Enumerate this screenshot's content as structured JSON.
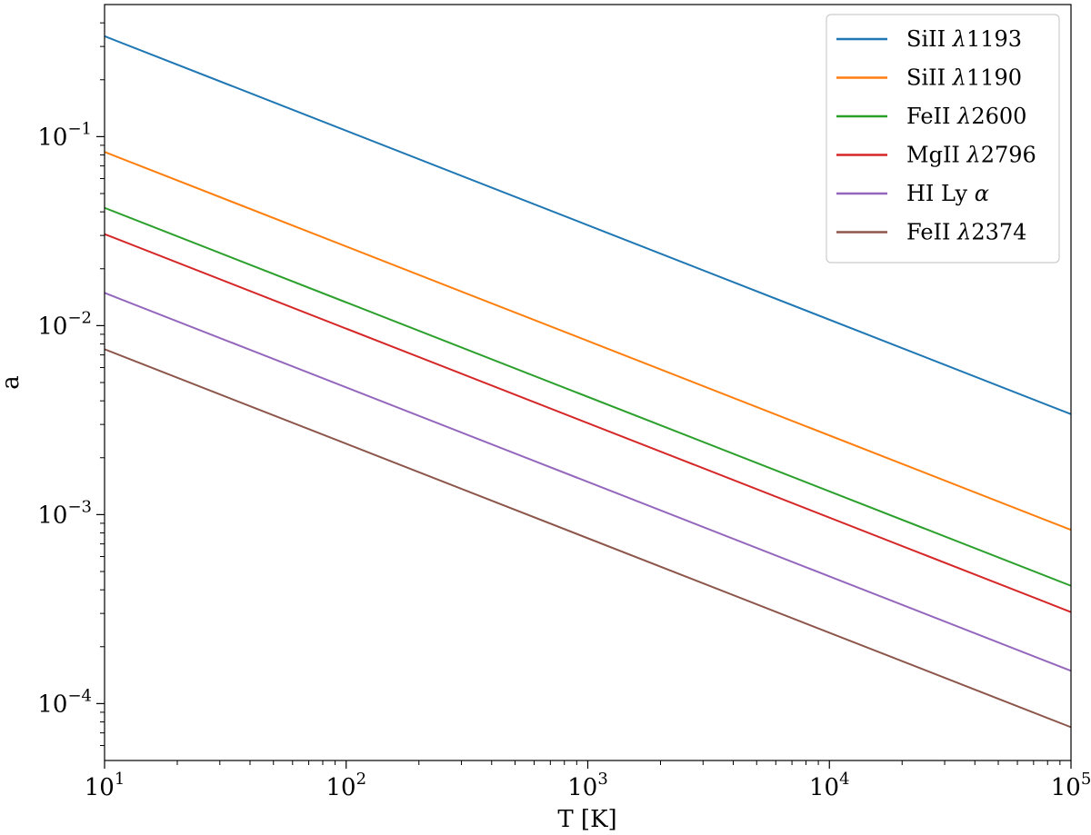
{
  "chart_data": {
    "type": "line",
    "title": "",
    "xlabel": "T [K]",
    "ylabel": "a",
    "xscale": "log",
    "yscale": "log",
    "xlim": [
      10,
      100000
    ],
    "ylim": [
      5e-05,
      0.5
    ],
    "grid": false,
    "legend_position": "top-right",
    "x_ticks": [
      {
        "value": 10,
        "base": "10",
        "exp": "1"
      },
      {
        "value": 100,
        "base": "10",
        "exp": "2"
      },
      {
        "value": 1000,
        "base": "10",
        "exp": "3"
      },
      {
        "value": 10000,
        "base": "10",
        "exp": "4"
      },
      {
        "value": 100000,
        "base": "10",
        "exp": "5"
      }
    ],
    "y_ticks": [
      {
        "value": 0.0001,
        "base": "10",
        "exp": "−4"
      },
      {
        "value": 0.001,
        "base": "10",
        "exp": "−3"
      },
      {
        "value": 0.01,
        "base": "10",
        "exp": "−2"
      },
      {
        "value": 0.1,
        "base": "10",
        "exp": "−1"
      }
    ],
    "x": [
      10,
      100000
    ],
    "series": [
      {
        "name": "SiII λ1193",
        "ion": "SiII",
        "line": "1193",
        "color": "#1f77b4",
        "values": [
          0.34,
          0.0034
        ]
      },
      {
        "name": "SiII λ1190",
        "ion": "SiII",
        "line": "1190",
        "color": "#ff7f0e",
        "values": [
          0.083,
          0.00083
        ]
      },
      {
        "name": "FeII λ2600",
        "ion": "FeII",
        "line": "2600",
        "color": "#2ca02c",
        "values": [
          0.042,
          0.00042
        ]
      },
      {
        "name": "MgII λ2796",
        "ion": "MgII",
        "line": "2796",
        "color": "#d62728",
        "values": [
          0.0305,
          0.000305
        ]
      },
      {
        "name": "HI Lyα",
        "ion": "HI Ly",
        "line": "α",
        "color": "#9467bd",
        "values": [
          0.0149,
          0.000149
        ]
      },
      {
        "name": "FeII λ2374",
        "ion": "FeII",
        "line": "2374",
        "color": "#8c564b",
        "values": [
          0.0075,
          7.5e-05
        ]
      }
    ]
  }
}
